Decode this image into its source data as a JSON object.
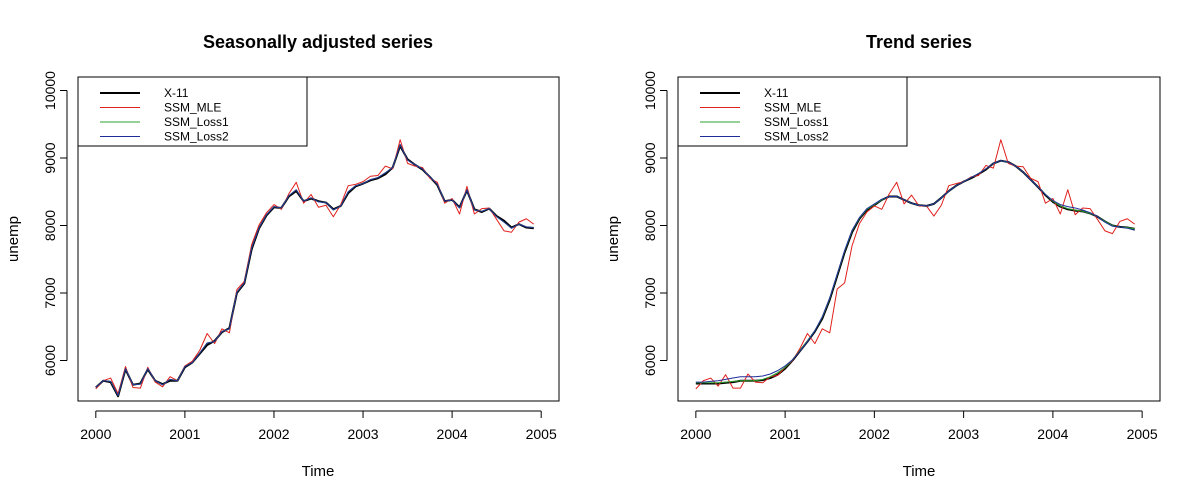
{
  "chart_data": [
    {
      "type": "line",
      "title": "Seasonally adjusted series",
      "xlabel": "Time",
      "ylabel": "unemp",
      "xlim": [
        2000,
        2005
      ],
      "ylim": [
        5400,
        10200
      ],
      "xticks": [
        "2000",
        "2001",
        "2002",
        "2003",
        "2004",
        "2005"
      ],
      "yticks": [
        "6000",
        "7000",
        "8000",
        "9000",
        "10000"
      ],
      "legend_position": "top-left",
      "series": [
        {
          "name": "X-11",
          "color": "#000000",
          "values": [
            5600,
            5700,
            5680,
            5470,
            5870,
            5640,
            5660,
            5870,
            5700,
            5650,
            5700,
            5700,
            5900,
            5970,
            6100,
            6230,
            6290,
            6420,
            6480,
            7000,
            7140,
            7650,
            7960,
            8150,
            8270,
            8260,
            8430,
            8510,
            8360,
            8400,
            8360,
            8340,
            8240,
            8290,
            8480,
            8580,
            8620,
            8670,
            8700,
            8760,
            8860,
            9180,
            8980,
            8900,
            8830,
            8720,
            8600,
            8360,
            8380,
            8270,
            8520,
            8240,
            8200,
            8250,
            8140,
            8070,
            7970,
            8020,
            7970,
            7960
          ]
        },
        {
          "name": "SSM_MLE",
          "color": "#e0201c",
          "values": [
            5580,
            5700,
            5740,
            5510,
            5910,
            5600,
            5590,
            5900,
            5680,
            5610,
            5760,
            5700,
            5920,
            5990,
            6150,
            6400,
            6250,
            6470,
            6410,
            7050,
            7170,
            7720,
            8010,
            8190,
            8310,
            8240,
            8470,
            8640,
            8330,
            8460,
            8270,
            8300,
            8130,
            8310,
            8590,
            8610,
            8650,
            8730,
            8740,
            8880,
            8840,
            9270,
            8920,
            8880,
            8860,
            8700,
            8640,
            8330,
            8400,
            8170,
            8580,
            8170,
            8250,
            8260,
            8090,
            7920,
            7900,
            8050,
            8100,
            8020
          ]
        },
        {
          "name": "SSM_Loss1",
          "color": "#2ca02c",
          "values": [
            5600,
            5700,
            5690,
            5480,
            5880,
            5640,
            5650,
            5880,
            5700,
            5640,
            5720,
            5700,
            5910,
            5970,
            6110,
            6260,
            6280,
            6430,
            6470,
            7010,
            7150,
            7670,
            7970,
            8160,
            8280,
            8260,
            8440,
            8530,
            8360,
            8410,
            8350,
            8340,
            8230,
            8290,
            8500,
            8590,
            8620,
            8680,
            8710,
            8780,
            8860,
            9200,
            8970,
            8900,
            8840,
            8720,
            8610,
            8360,
            8380,
            8260,
            8530,
            8230,
            8210,
            8250,
            8130,
            8050,
            7960,
            8020,
            7980,
            7970
          ]
        },
        {
          "name": "SSM_Loss2",
          "color": "#1f2f9a",
          "values": [
            5600,
            5700,
            5690,
            5480,
            5880,
            5640,
            5650,
            5880,
            5700,
            5640,
            5720,
            5700,
            5910,
            5970,
            6110,
            6260,
            6280,
            6430,
            6470,
            7010,
            7150,
            7670,
            7970,
            8160,
            8280,
            8260,
            8440,
            8530,
            8360,
            8410,
            8350,
            8340,
            8230,
            8290,
            8500,
            8590,
            8620,
            8680,
            8710,
            8780,
            8860,
            9200,
            8970,
            8900,
            8840,
            8720,
            8610,
            8360,
            8380,
            8260,
            8530,
            8230,
            8210,
            8250,
            8130,
            8050,
            7960,
            8020,
            7980,
            7970
          ]
        }
      ]
    },
    {
      "type": "line",
      "title": "Trend series",
      "xlabel": "Time",
      "ylabel": "unemp",
      "xlim": [
        2000,
        2005
      ],
      "ylim": [
        5400,
        10200
      ],
      "xticks": [
        "2000",
        "2001",
        "2002",
        "2003",
        "2004",
        "2005"
      ],
      "yticks": [
        "6000",
        "7000",
        "8000",
        "9000",
        "10000"
      ],
      "legend_position": "top-left",
      "series": [
        {
          "name": "X-11",
          "color": "#000000",
          "values": [
            5660,
            5660,
            5660,
            5660,
            5670,
            5680,
            5700,
            5700,
            5700,
            5710,
            5740,
            5790,
            5880,
            6000,
            6140,
            6280,
            6430,
            6620,
            6900,
            7250,
            7600,
            7900,
            8100,
            8230,
            8300,
            8380,
            8430,
            8430,
            8380,
            8330,
            8300,
            8290,
            8320,
            8410,
            8510,
            8590,
            8650,
            8700,
            8760,
            8830,
            8920,
            8960,
            8940,
            8880,
            8790,
            8680,
            8570,
            8450,
            8350,
            8280,
            8240,
            8220,
            8210,
            8180,
            8130,
            8060,
            8000,
            7980,
            7970,
            7950
          ]
        },
        {
          "name": "SSM_MLE",
          "color": "#e0201c",
          "values": [
            5580,
            5700,
            5740,
            5620,
            5790,
            5590,
            5590,
            5800,
            5680,
            5670,
            5760,
            5780,
            5900,
            6000,
            6180,
            6400,
            6250,
            6470,
            6410,
            7060,
            7150,
            7700,
            8030,
            8200,
            8290,
            8240,
            8470,
            8640,
            8320,
            8450,
            8290,
            8290,
            8140,
            8300,
            8590,
            8620,
            8650,
            8720,
            8740,
            8890,
            8850,
            9270,
            8920,
            8880,
            8870,
            8700,
            8650,
            8330,
            8400,
            8170,
            8530,
            8160,
            8260,
            8250,
            8090,
            7920,
            7880,
            8060,
            8100,
            8020
          ]
        },
        {
          "name": "SSM_Loss1",
          "color": "#2ca02c",
          "values": [
            5670,
            5670,
            5670,
            5670,
            5680,
            5690,
            5700,
            5700,
            5700,
            5720,
            5760,
            5820,
            5900,
            6010,
            6150,
            6290,
            6440,
            6640,
            6920,
            7270,
            7620,
            7920,
            8110,
            8240,
            8310,
            8380,
            8430,
            8430,
            8380,
            8330,
            8300,
            8290,
            8320,
            8410,
            8510,
            8590,
            8650,
            8710,
            8770,
            8840,
            8920,
            8960,
            8940,
            8880,
            8790,
            8680,
            8570,
            8460,
            8360,
            8290,
            8250,
            8230,
            8210,
            8180,
            8130,
            8060,
            8000,
            7980,
            7970,
            7950
          ]
        },
        {
          "name": "SSM_Loss2",
          "color": "#1f2f9a",
          "values": [
            5680,
            5680,
            5690,
            5700,
            5720,
            5740,
            5760,
            5760,
            5760,
            5770,
            5800,
            5850,
            5920,
            6010,
            6140,
            6280,
            6440,
            6650,
            6930,
            7280,
            7630,
            7930,
            8120,
            8250,
            8320,
            8390,
            8430,
            8430,
            8380,
            8330,
            8300,
            8290,
            8320,
            8410,
            8510,
            8590,
            8650,
            8710,
            8770,
            8840,
            8920,
            8960,
            8940,
            8880,
            8790,
            8680,
            8570,
            8460,
            8370,
            8310,
            8280,
            8260,
            8230,
            8190,
            8130,
            8050,
            7990,
            7980,
            7960,
            7930
          ]
        }
      ]
    }
  ]
}
